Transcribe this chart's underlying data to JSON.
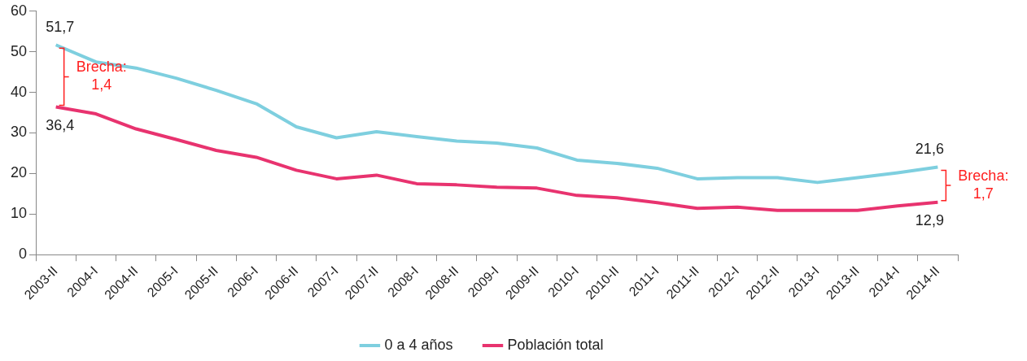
{
  "chart_data": {
    "type": "line",
    "categories": [
      "2003-II",
      "2004-I",
      "2004-II",
      "2005-I",
      "2005-II",
      "2006-I",
      "2006-II",
      "2007-I",
      "2007-II",
      "2008-I",
      "2008-II",
      "2009-I",
      "2009-II",
      "2010-I",
      "2010-II",
      "2011-I",
      "2011-II",
      "2012-I",
      "2012-II",
      "2013-I",
      "2013-II",
      "2014-I",
      "2014-II"
    ],
    "series": [
      {
        "name": "0 a 4 años",
        "color": "#7ecfdf",
        "values": [
          51.7,
          47.5,
          46,
          43.5,
          40.5,
          37.2,
          31.5,
          28.8,
          30.3,
          29.1,
          28,
          27.5,
          26.3,
          23.3,
          22.5,
          21.3,
          18.7,
          19,
          19,
          17.8,
          19,
          20.2,
          21.6
        ],
        "value_labels": [
          "51,7",
          null,
          null,
          null,
          null,
          null,
          null,
          null,
          null,
          null,
          null,
          null,
          null,
          null,
          null,
          null,
          null,
          null,
          null,
          null,
          null,
          null,
          "21,6"
        ]
      },
      {
        "name": "Población total",
        "color": "#e8336f",
        "values": [
          36.4,
          34.7,
          31,
          28.4,
          25.7,
          24,
          20.8,
          18.7,
          19.6,
          17.5,
          17.2,
          16.6,
          16.4,
          14.6,
          14,
          12.8,
          11.4,
          11.7,
          10.9,
          10.9,
          10.9,
          12,
          12.9
        ],
        "value_labels": [
          "36,4",
          null,
          null,
          null,
          null,
          null,
          null,
          null,
          null,
          null,
          null,
          null,
          null,
          null,
          null,
          null,
          null,
          null,
          null,
          null,
          null,
          null,
          "12,9"
        ]
      }
    ],
    "ylim": [
      0,
      60
    ],
    "yticks": [
      0,
      10,
      20,
      30,
      40,
      50,
      60
    ],
    "grid": false,
    "legend": "bottom",
    "marker": "none",
    "line_style": "solid",
    "annotations": [
      "Brecha:\n1,4",
      {
        "text": "Brecha:\n1,7",
        "x": "2014-II",
        "y": 12.9
      }
    ]
  }
}
